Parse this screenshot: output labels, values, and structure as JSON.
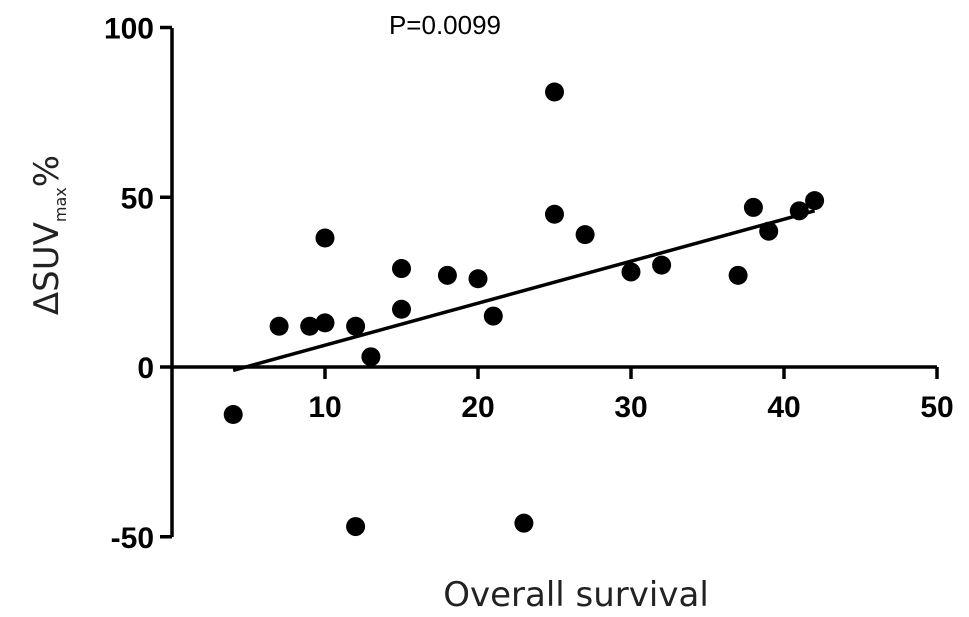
{
  "chart_data": {
    "type": "scatter",
    "title": "P=0.0099",
    "xlabel": "Overall survival",
    "ylabel": {
      "prefix": "ΔSUV",
      "subscript": "max",
      "suffix": "%"
    },
    "xlim": [
      0,
      50
    ],
    "ylim": [
      -50,
      100
    ],
    "xticks": [
      10,
      20,
      30,
      40,
      50
    ],
    "yticks": [
      -50,
      0,
      50,
      100
    ],
    "x": [
      4,
      7,
      9,
      10,
      10,
      12,
      12,
      13,
      15,
      15,
      18,
      20,
      21,
      23,
      25,
      25,
      27,
      30,
      32,
      37,
      38,
      39,
      41,
      42
    ],
    "y": [
      -14,
      12,
      12,
      13,
      38,
      12,
      -47,
      3,
      29,
      17,
      27,
      26,
      15,
      -46,
      81,
      45,
      39,
      28,
      30,
      27,
      47,
      40,
      46,
      49
    ],
    "trendline": {
      "x": [
        4,
        42
      ],
      "y": [
        -1,
        46
      ]
    },
    "grid": false,
    "colors": {
      "points": "#000000",
      "axes": "#000000",
      "trendline": "#000000"
    }
  }
}
